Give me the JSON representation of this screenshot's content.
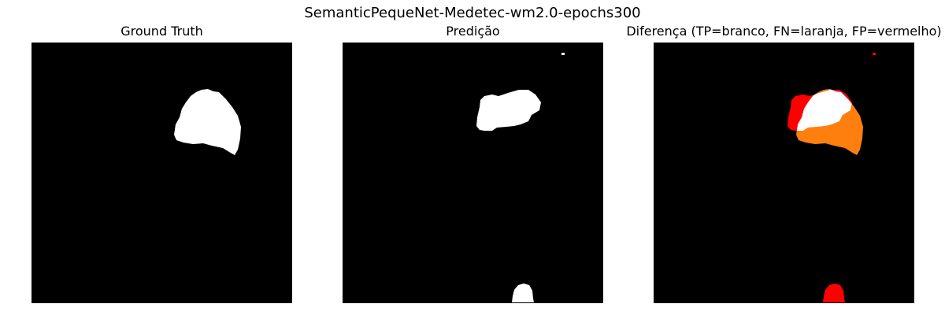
{
  "figure": {
    "title": "SemanticPequeNet-Medetec-wm2.0-epochs300"
  },
  "panels": [
    {
      "title": "Ground Truth"
    },
    {
      "title": "Predição"
    },
    {
      "title": "Diferença (TP=branco, FN=laranja, FP=vermelho)"
    }
  ],
  "colors": {
    "background": "#000000",
    "mask": "#ffffff",
    "true_positive": "#ffffff",
    "false_negative": "#ff7f0e",
    "false_positive": "#ff0000"
  }
}
